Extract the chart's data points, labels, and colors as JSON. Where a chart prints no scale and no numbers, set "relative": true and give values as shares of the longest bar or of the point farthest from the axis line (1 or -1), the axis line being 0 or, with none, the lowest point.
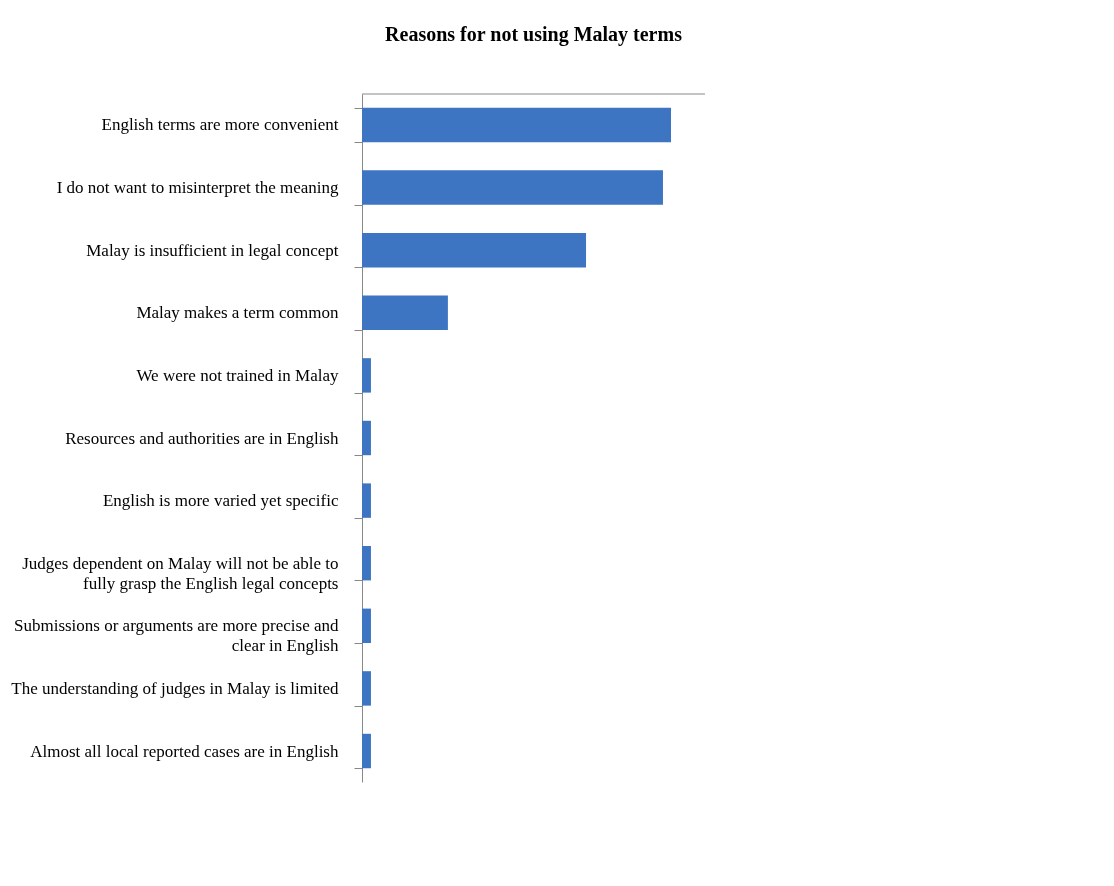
{
  "chart_data": {
    "type": "bar",
    "orientation": "horizontal",
    "relative": true,
    "title": "Reasons for not using Malay terms",
    "categories": [
      "English terms are more convenient",
      "I do not want to misinterpret the meaning",
      "Malay is insufficient in legal concept",
      "Malay makes a term common",
      "We were not trained in Malay",
      "Resources and authorities are in English",
      "English is more varied yet specific",
      "Judges dependent on Malay will not be able to fully grasp the English legal concepts",
      "Submissions or arguments are more precise and clear in English",
      "The understanding of judges in Malay is limited",
      "Almost all local reported cases are in English"
    ],
    "values": [
      1,
      0.974,
      0.725,
      0.278,
      0.029,
      0.029,
      0.029,
      0.029,
      0.029,
      0.029,
      0.029
    ],
    "color": "#3e75c2",
    "grid": false
  }
}
